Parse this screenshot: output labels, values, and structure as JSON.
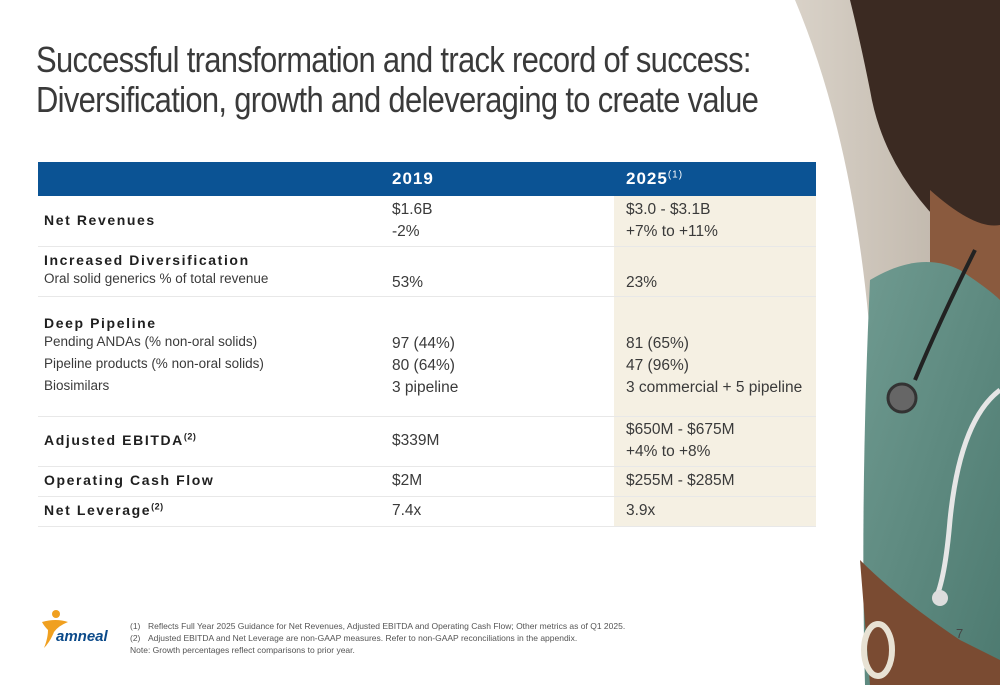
{
  "title": {
    "line1": "Successful transformation and track record of success:",
    "line2": "Diversification, growth and deleveraging to create value"
  },
  "table": {
    "header": {
      "col1": "2019",
      "col2": "2025",
      "col2_sup": "(1)"
    },
    "rows": {
      "net_revenues": {
        "label": "Net Revenues",
        "v2019_a": "$1.6B",
        "v2019_b": "-2%",
        "v2025_a": "$3.0 - $3.1B",
        "v2025_b": "+7% to +11%"
      },
      "diversification": {
        "label": "Increased Diversification",
        "sub": "Oral solid generics % of total revenue",
        "v2019": "53%",
        "v2025": "23%"
      },
      "pipeline": {
        "label": "Deep Pipeline",
        "sub1": "Pending ANDAs (% non-oral solids)",
        "sub2": "Pipeline products (% non-oral solids)",
        "sub3": "Biosimilars",
        "v2019_a": "97 (44%)",
        "v2019_b": "80 (64%)",
        "v2019_c": "3 pipeline",
        "v2025_a": "81 (65%)",
        "v2025_b": "47 (96%)",
        "v2025_c": "3 commercial + 5 pipeline"
      },
      "ebitda": {
        "label": "Adjusted EBITDA",
        "sup": "(2)",
        "v2019": "$339M",
        "v2025_a": "$650M - $675M",
        "v2025_b": "+4% to +8%"
      },
      "cash_flow": {
        "label": "Operating Cash Flow",
        "v2019": "$2M",
        "v2025": "$255M - $285M"
      },
      "leverage": {
        "label": "Net Leverage",
        "sup": "(2)",
        "v2019": "7.4x",
        "v2025": "3.9x"
      }
    }
  },
  "footnotes": {
    "n1_num": "(1)",
    "n1": "Reflects Full Year 2025 Guidance for Net Revenues, Adjusted EBITDA and Operating Cash Flow; Other metrics as of Q1 2025.",
    "n2_num": "(2)",
    "n2": "Adjusted EBITDA and Net Leverage are non-GAAP measures. Refer to non-GAAP reconciliations in the appendix.",
    "note": "Note: Growth percentages reflect comparisons to prior year."
  },
  "logo_text": "amneal",
  "page_number": "7",
  "colors": {
    "header_blue": "#0b5394",
    "highlight_beige": "#f5f0e3",
    "brand_orange": "#f0a020"
  }
}
